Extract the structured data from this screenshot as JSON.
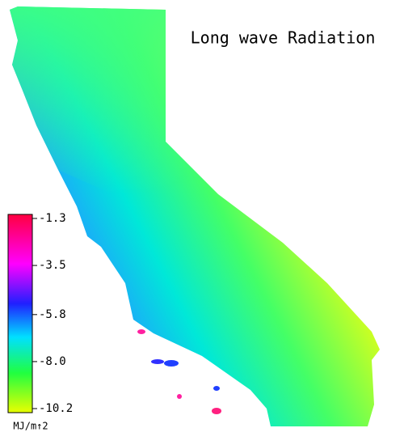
{
  "title": "Long wave Radiation",
  "colorbar": {
    "range": [
      -10.2,
      -1.3
    ],
    "ticks": [
      -1.3,
      -3.5,
      -5.8,
      {
        "value": -8,
        "label": "-8.0"
      },
      -10.2
    ],
    "unit": "MJ/m↑2"
  }
}
